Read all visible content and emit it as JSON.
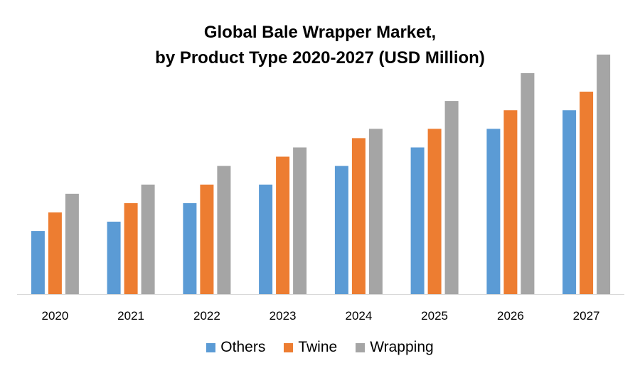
{
  "title_line1": "Global Bale Wrapper Market,",
  "title_line2": "by Product Type 2020-2027 (USD Million)",
  "chart_data": {
    "type": "bar",
    "categories": [
      "2020",
      "2021",
      "2022",
      "2023",
      "2024",
      "2025",
      "2026",
      "2027"
    ],
    "series": [
      {
        "name": "Others",
        "color": "#5B9BD5",
        "values": [
          3.4,
          3.9,
          4.9,
          5.9,
          6.9,
          7.9,
          8.9,
          9.9
        ]
      },
      {
        "name": "Twine",
        "color": "#ED7D31",
        "values": [
          4.4,
          4.9,
          5.9,
          7.4,
          8.4,
          8.9,
          9.9,
          10.9
        ]
      },
      {
        "name": "Wrapping",
        "color": "#A5A5A5",
        "values": [
          5.4,
          5.9,
          6.9,
          7.9,
          8.9,
          10.4,
          11.9,
          12.9
        ]
      }
    ],
    "ylim": [
      0,
      14
    ],
    "grid": false,
    "legend_position": "bottom"
  }
}
